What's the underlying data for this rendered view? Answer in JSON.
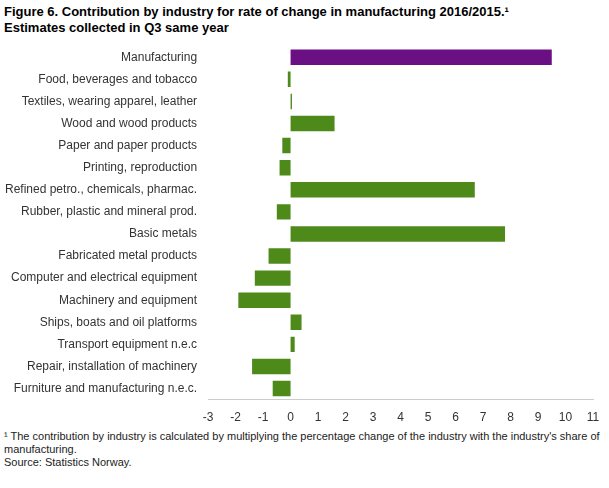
{
  "chart_data": {
    "type": "bar",
    "title": "Figure 6. Contribution by industry for rate of change in manufacturing  2016/2015.¹",
    "subtitle": "Estimates collected in Q3 same year",
    "annotations": [
      "¹ The contribution by industry is calculated by multiplying the percentage change of the industry with the industry's share of manufacturing.",
      "Source: Statistics Norway."
    ],
    "orientation": "horizontal",
    "categories": [
      "Manufacturing",
      "Food, beverages and tobacco",
      "Textiles, wearing apparel, leather",
      "Wood and wood products",
      "Paper and paper products",
      "Printing, reproduction",
      "Refined petro., chemicals, pharmac.",
      "Rubber, plastic and mineral prod.",
      "Basic metals",
      "Fabricated metal products",
      "Computer and electrical equipment",
      "Machinery and equipment",
      "Ships, boats and oil platforms",
      "Transport equipment n.e.c",
      "Repair, installation of machinery",
      "Furniture and manufacturing n.e.c."
    ],
    "values": [
      9.5,
      -0.1,
      0.05,
      1.6,
      -0.3,
      -0.4,
      6.7,
      -0.5,
      7.8,
      -0.8,
      -1.3,
      -1.9,
      0.4,
      0.15,
      -1.4,
      -0.65
    ],
    "colors": [
      "#6b0f84",
      "#4e8a1a",
      "#4e8a1a",
      "#4e8a1a",
      "#4e8a1a",
      "#4e8a1a",
      "#4e8a1a",
      "#4e8a1a",
      "#4e8a1a",
      "#4e8a1a",
      "#4e8a1a",
      "#4e8a1a",
      "#4e8a1a",
      "#4e8a1a",
      "#4e8a1a",
      "#4e8a1a"
    ],
    "xlim": [
      -3,
      11
    ],
    "xticks": [
      -3,
      -2,
      -1,
      0,
      1,
      2,
      3,
      4,
      5,
      6,
      7,
      8,
      9,
      10,
      11
    ],
    "grid": false
  }
}
